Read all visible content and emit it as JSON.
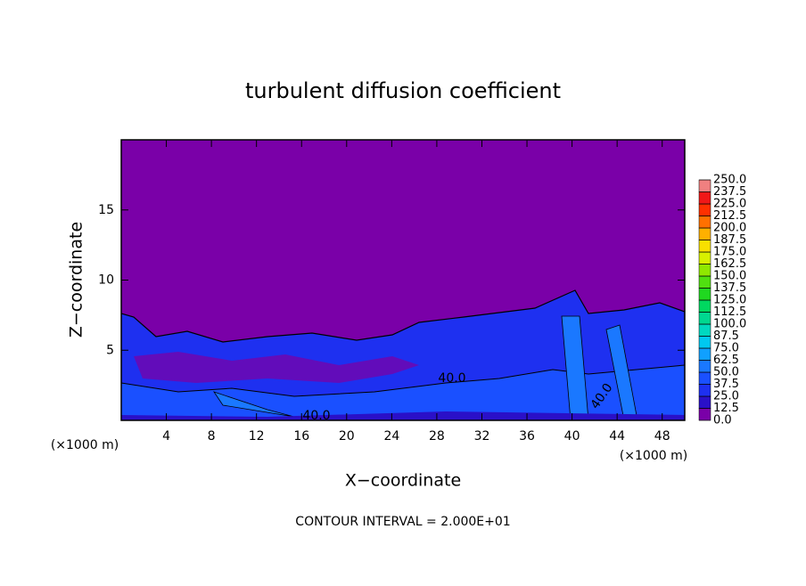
{
  "chart_data": {
    "type": "contour",
    "title": "turbulent diffusion coefficient",
    "xlabel": "X−coordinate",
    "ylabel": "Z−coordinate",
    "xunit": "(×1000 m)",
    "yunit": "(×1000 m)",
    "footer": "CONTOUR INTERVAL = 2.000E+01",
    "xlim": [
      0,
      50
    ],
    "ylim": [
      0,
      20
    ],
    "xticks": [
      4,
      8,
      12,
      16,
      20,
      24,
      28,
      32,
      36,
      40,
      44,
      48
    ],
    "yticks": [
      5,
      10,
      15
    ],
    "contour_labels": [
      "40.0",
      "40.0",
      "40.0"
    ],
    "colorbar": {
      "ticks": [
        {
          "value": 0,
          "label": "0.0"
        },
        {
          "value": 12.5,
          "label": "12.5"
        },
        {
          "value": 25,
          "label": "25.0"
        },
        {
          "value": 37.5,
          "label": "37.5"
        },
        {
          "value": 50,
          "label": "50.0"
        },
        {
          "value": 62.5,
          "label": "62.5"
        },
        {
          "value": 75,
          "label": "75.0"
        },
        {
          "value": 87.5,
          "label": "87.5"
        },
        {
          "value": 100,
          "label": "100.0"
        },
        {
          "value": 112.5,
          "label": "112.5"
        },
        {
          "value": 125,
          "label": "125.0"
        },
        {
          "value": 137.5,
          "label": "137.5"
        },
        {
          "value": 150,
          "label": "150.0"
        },
        {
          "value": 162.5,
          "label": "162.5"
        },
        {
          "value": 175,
          "label": "175.0"
        },
        {
          "value": 187.5,
          "label": "187.5"
        },
        {
          "value": 200,
          "label": "200.0"
        },
        {
          "value": 212.5,
          "label": "212.5"
        },
        {
          "value": 225,
          "label": "225.0"
        },
        {
          "value": 237.5,
          "label": "237.5"
        },
        {
          "value": 250,
          "label": "250.0"
        }
      ],
      "colors": [
        "#7a00a8",
        "#2a10c8",
        "#1e30f0",
        "#1a50ff",
        "#1a78ff",
        "#10a0ff",
        "#00c8f0",
        "#00d8c0",
        "#00d890",
        "#00d860",
        "#20d820",
        "#50e010",
        "#90e800",
        "#d8f000",
        "#f8e000",
        "#ffb000",
        "#ff7000",
        "#ff3000",
        "#f01818",
        "#f08080"
      ]
    }
  }
}
